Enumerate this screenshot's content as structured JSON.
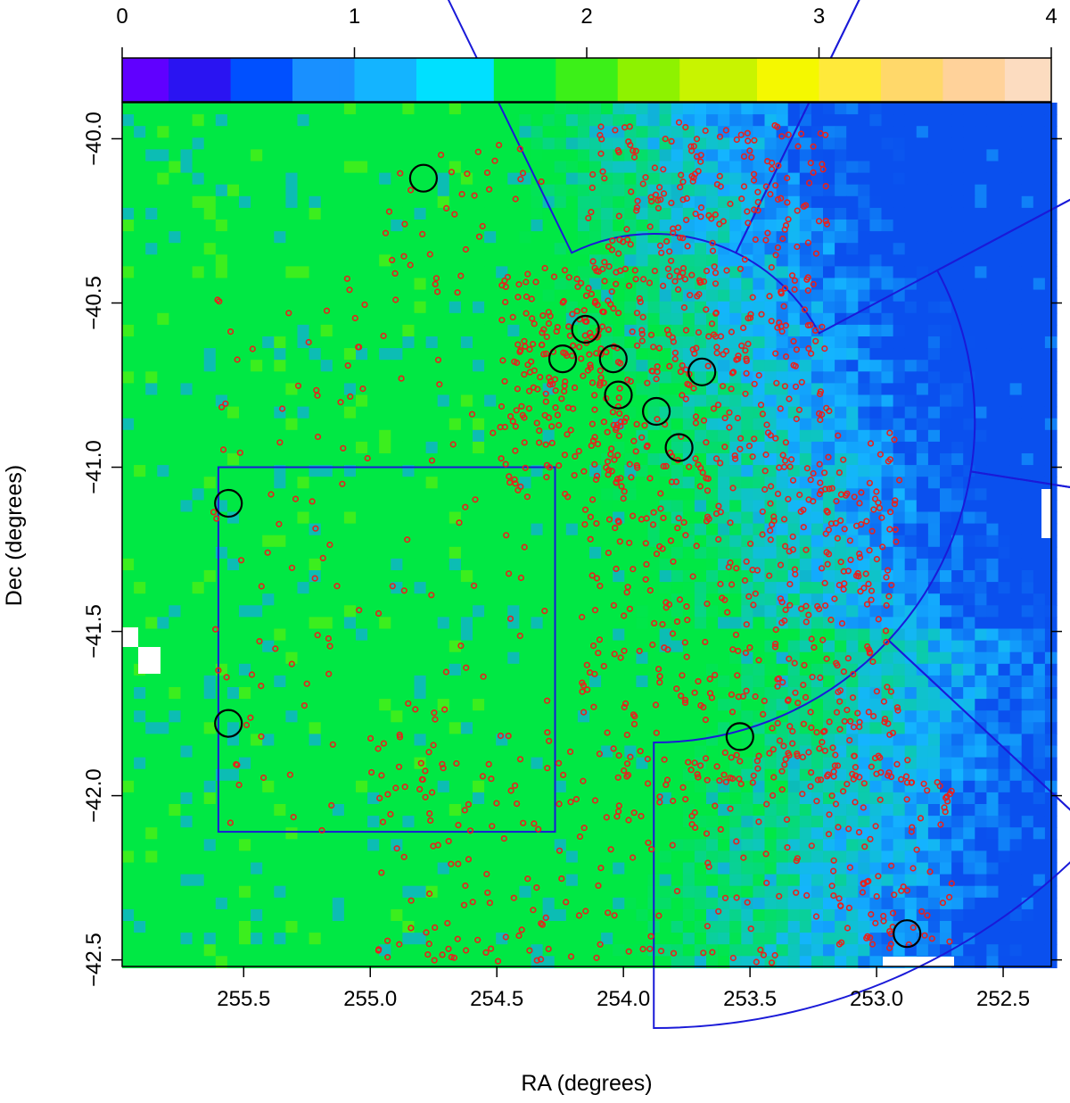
{
  "chart_data": {
    "type": "scatter",
    "xlabel": "RA (degrees)",
    "ylabel": "Dec (degrees)",
    "x_reversed": true,
    "xlim": [
      255.98,
      252.31
    ],
    "ylim": [
      -42.52,
      -39.89
    ],
    "x_ticks": [
      255.5,
      255.0,
      254.5,
      254.0,
      253.5,
      253.0,
      252.5
    ],
    "x_tick_labels": [
      "255.5",
      "255.0",
      "254.5",
      "254.0",
      "253.5",
      "253.0",
      "252.5"
    ],
    "y_ticks": [
      -40.0,
      -40.5,
      -41.0,
      -41.5,
      -42.0,
      -42.5
    ],
    "y_tick_labels": [
      "−40.0",
      "−40.5",
      "−41.0",
      "−41.5",
      "−42.0",
      "−42.5"
    ],
    "colorbar": {
      "range": [
        0,
        4
      ],
      "ticks": [
        0,
        1,
        2,
        3,
        4
      ],
      "tick_labels": [
        "0",
        "1",
        "2",
        "3",
        "4"
      ],
      "colors": [
        "#6000ff",
        "#2a14f2",
        "#0050ff",
        "#1990ff",
        "#14b4ff",
        "#00e0ff",
        "#00ee44",
        "#3cf018",
        "#8ef200",
        "#c8f400",
        "#f5f800",
        "#ffe93a",
        "#ffd86a",
        "#ffd29a",
        "#fcdcc0"
      ]
    },
    "background_map": {
      "description": "pixelated extinction-like color map on the colorbar scale",
      "low_region_color": "#0a50ee",
      "mid_region_color": "#14b4ff",
      "high_region_color": "#00e844"
    },
    "regions": {
      "wedge_center": [
        253.88,
        -40.86
      ],
      "rectangle": {
        "ra": [
          254.27,
          255.6
        ],
        "dec": [
          -42.11,
          -41.0
        ],
        "color": "#1a1ad8"
      }
    },
    "series": [
      {
        "marker": "open circle",
        "color": "#e8201c",
        "points_label": "small red circles (sources)"
      },
      {
        "marker": "large open circle",
        "color": "#000000",
        "points": [
          [
            254.79,
            -40.12
          ],
          [
            254.15,
            -40.58
          ],
          [
            254.24,
            -40.67
          ],
          [
            254.04,
            -40.67
          ],
          [
            253.69,
            -40.71
          ],
          [
            254.02,
            -40.78
          ],
          [
            253.87,
            -40.83
          ],
          [
            253.78,
            -40.94
          ],
          [
            255.56,
            -41.11
          ],
          [
            255.56,
            -41.78
          ],
          [
            253.54,
            -41.82
          ],
          [
            252.88,
            -42.42
          ]
        ]
      }
    ]
  }
}
